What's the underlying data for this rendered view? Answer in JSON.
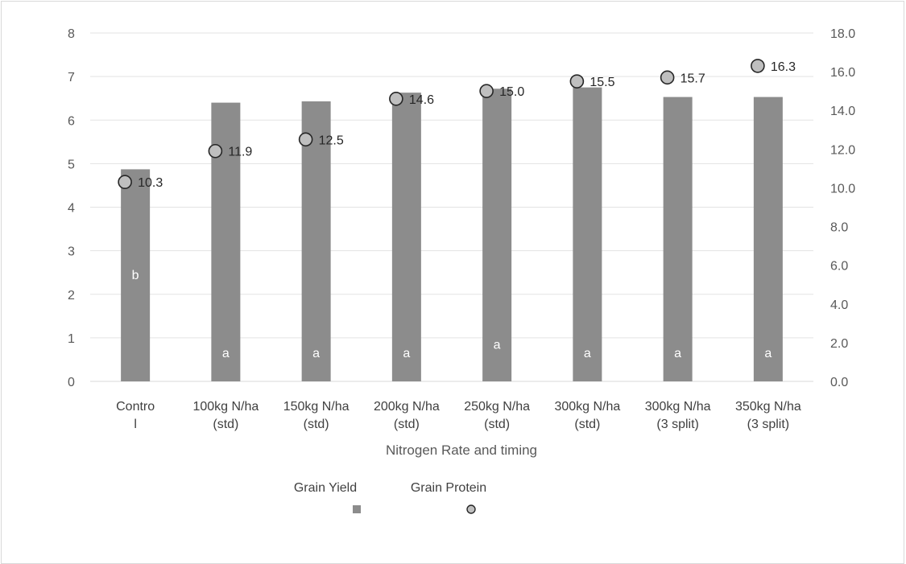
{
  "chart_data": {
    "type": "bar",
    "xlabel": "Nitrogen Rate and timing",
    "categories": [
      [
        "Contro",
        "l"
      ],
      [
        "100kg N/ha",
        "(std)"
      ],
      [
        "150kg N/ha",
        "(std)"
      ],
      [
        "200kg N/ha",
        "(std)"
      ],
      [
        "250kg N/ha",
        "(std)"
      ],
      [
        "300kg N/ha",
        "(std)"
      ],
      [
        "300kg N/ha",
        "(3 split)"
      ],
      [
        "350kg N/ha",
        "(3 split)"
      ]
    ],
    "series": [
      {
        "name": "Grain Yield",
        "type": "bar",
        "axis": "left",
        "color": "#8c8c8c",
        "values": [
          4.87,
          6.4,
          6.43,
          6.63,
          6.72,
          6.75,
          6.53,
          6.53
        ],
        "significance_labels": [
          "b",
          "a",
          "a",
          "a",
          "a",
          "a",
          "a",
          "a"
        ]
      },
      {
        "name": "Grain Protein",
        "type": "scatter",
        "axis": "right",
        "color": "#bfbfbf",
        "values": [
          10.3,
          11.9,
          12.5,
          14.6,
          15.0,
          15.5,
          15.7,
          16.3
        ],
        "data_labels": [
          "10.3",
          "11.9",
          "12.5",
          "14.6",
          "15.0",
          "15.5",
          "15.7",
          "16.3"
        ]
      }
    ],
    "y_left": {
      "min": 0,
      "max": 8,
      "ticks": [
        "0",
        "1",
        "2",
        "3",
        "4",
        "5",
        "6",
        "7",
        "8"
      ]
    },
    "y_right": {
      "min": 0,
      "max": 18,
      "ticks": [
        "0.0",
        "2.0",
        "4.0",
        "6.0",
        "8.0",
        "10.0",
        "12.0",
        "14.0",
        "16.0",
        "18.0"
      ]
    },
    "grid": true,
    "legend_position": "bottom"
  }
}
